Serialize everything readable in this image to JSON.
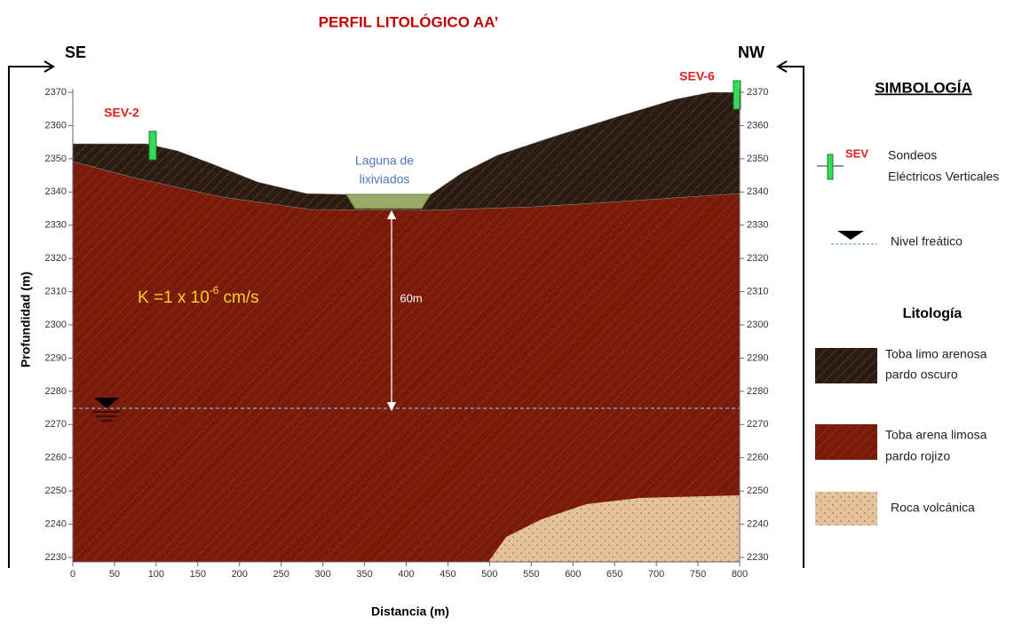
{
  "header": {
    "title": "PERFIL LITOLÓGICO AA’"
  },
  "section": {
    "left_label": "SE",
    "right_label": "NW",
    "sev_left": "SEV-2",
    "sev_right": "SEV-6",
    "lagoon": [
      "Laguna de",
      "lixiviados"
    ],
    "depth_label": "60m",
    "k_label": {
      "prefix": "K =1 x 10",
      "exponent": "-6",
      "unit": "cm/s"
    }
  },
  "axes": {
    "ylabel": "Profundidad (m)",
    "xlabel": "Distancia (m)",
    "xlim": [
      0,
      800
    ],
    "ylim": [
      2230,
      2370
    ],
    "xticks": [
      0,
      50,
      100,
      150,
      200,
      250,
      300,
      350,
      400,
      450,
      500,
      550,
      600,
      650,
      700,
      750,
      800
    ],
    "yticks": [
      2230,
      2240,
      2250,
      2260,
      2270,
      2280,
      2290,
      2300,
      2310,
      2320,
      2330,
      2340,
      2350,
      2360,
      2370
    ]
  },
  "legend": {
    "title": "SIMBOLOGÍA",
    "sev_tag": "SEV",
    "sev_text": [
      "Sondeos",
      "Eléctricos Verticales"
    ],
    "water_table": "Nivel freático",
    "lithology_title": "Litología",
    "items": [
      [
        "Toba limo arenosa",
        "pardo oscuro"
      ],
      [
        "Toba arena limosa",
        " pardo rojizo"
      ],
      [
        "Roca volcánica"
      ]
    ]
  }
}
